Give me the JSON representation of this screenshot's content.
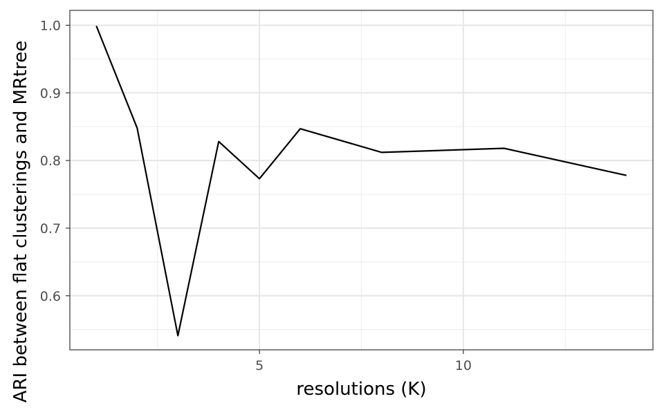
{
  "chart_data": {
    "type": "line",
    "title": "",
    "xlabel": "resolutions (K)",
    "ylabel": "ARI between flat clusterings and MRtree",
    "xlim": [
      0.35,
      14.65
    ],
    "ylim": [
      0.52,
      1.022
    ],
    "x_ticks": [
      5,
      10
    ],
    "x_tick_labels": [
      "5",
      "10"
    ],
    "x_minor_ticks": [
      2.5,
      7.5,
      12.5
    ],
    "y_ticks": [
      0.6,
      0.7,
      0.8,
      0.9,
      1.0
    ],
    "y_tick_labels": [
      "0.6",
      "0.7",
      "0.8",
      "0.9",
      "1.0"
    ],
    "y_minor_ticks": [
      0.55,
      0.65,
      0.75,
      0.85,
      0.95
    ],
    "grid": true,
    "legend": "none",
    "series": [
      {
        "color": "#000000",
        "x": [
          1,
          2,
          3,
          4,
          5,
          6,
          8,
          11,
          14
        ],
        "y": [
          0.999,
          0.848,
          0.541,
          0.828,
          0.773,
          0.847,
          0.812,
          0.818,
          0.778
        ]
      }
    ]
  }
}
